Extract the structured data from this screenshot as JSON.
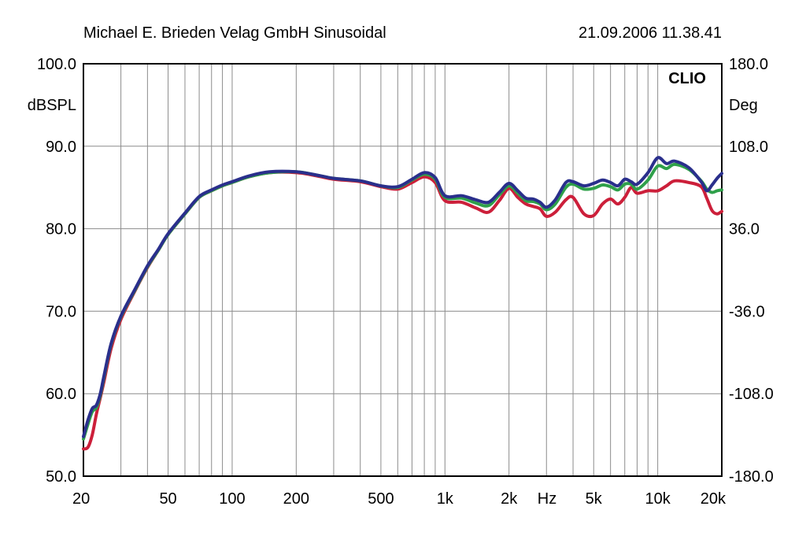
{
  "header": {
    "title": "Michael E. Brieden Velag GmbH Sinusoidal",
    "timestamp": "21.09.2006 11.38.41"
  },
  "brand": "CLIO",
  "chart_data": {
    "type": "line",
    "x_scale": "log",
    "xlim": [
      20,
      20000
    ],
    "ylim": [
      50,
      100
    ],
    "y2lim": [
      -180,
      180
    ],
    "grid": true,
    "ylabel": "dBSPL",
    "y2label": "Deg",
    "x_unit_label": "Hz",
    "x_ticks": [
      {
        "value": 20,
        "label": "20"
      },
      {
        "value": 50,
        "label": "50"
      },
      {
        "value": 100,
        "label": "100"
      },
      {
        "value": 200,
        "label": "200"
      },
      {
        "value": 500,
        "label": "500"
      },
      {
        "value": 1000,
        "label": "1k"
      },
      {
        "value": 2000,
        "label": "2k"
      },
      {
        "value": 5000,
        "label": "5k"
      },
      {
        "value": 10000,
        "label": "10k"
      },
      {
        "value": 20000,
        "label": "20k"
      }
    ],
    "y_ticks": [
      {
        "value": 100,
        "label": "100.0"
      },
      {
        "value": 90,
        "label": "90.0"
      },
      {
        "value": 80,
        "label": "80.0"
      },
      {
        "value": 70,
        "label": "70.0"
      },
      {
        "value": 60,
        "label": "60.0"
      },
      {
        "value": 50,
        "label": "50.0"
      }
    ],
    "y2_ticks": [
      {
        "value": 180,
        "label": "180.0"
      },
      {
        "value": 108,
        "label": "108.0"
      },
      {
        "value": 36,
        "label": "36.0"
      },
      {
        "value": -36,
        "label": "-36.0"
      },
      {
        "value": -108,
        "label": "-108.0"
      },
      {
        "value": -180,
        "label": "-180.0"
      }
    ],
    "series": [
      {
        "color": "#cc1f3a",
        "points": [
          [
            20,
            53.3
          ],
          [
            21,
            53.5
          ],
          [
            22,
            55
          ],
          [
            23,
            57.5
          ],
          [
            24,
            59.5
          ],
          [
            25,
            61.5
          ],
          [
            27,
            65.5
          ],
          [
            30,
            69
          ],
          [
            35,
            72.5
          ],
          [
            40,
            75.3
          ],
          [
            45,
            77.4
          ],
          [
            50,
            79.3
          ],
          [
            60,
            81.8
          ],
          [
            70,
            83.8
          ],
          [
            80,
            84.6
          ],
          [
            90,
            85.2
          ],
          [
            100,
            85.6
          ],
          [
            120,
            86.3
          ],
          [
            150,
            86.8
          ],
          [
            200,
            86.8
          ],
          [
            250,
            86.4
          ],
          [
            300,
            86
          ],
          [
            400,
            85.7
          ],
          [
            500,
            85.1
          ],
          [
            600,
            84.8
          ],
          [
            700,
            85.6
          ],
          [
            800,
            86.3
          ],
          [
            900,
            85.6
          ],
          [
            1000,
            83.4
          ],
          [
            1200,
            83.2
          ],
          [
            1400,
            82.5
          ],
          [
            1600,
            82
          ],
          [
            1800,
            83.4
          ],
          [
            2000,
            84.9
          ],
          [
            2200,
            83.8
          ],
          [
            2400,
            83
          ],
          [
            2600,
            82.7
          ],
          [
            2800,
            82.4
          ],
          [
            3000,
            81.5
          ],
          [
            3300,
            82
          ],
          [
            3700,
            83.5
          ],
          [
            4000,
            83.8
          ],
          [
            4500,
            81.8
          ],
          [
            5000,
            81.6
          ],
          [
            5500,
            83
          ],
          [
            6000,
            83.6
          ],
          [
            6500,
            83
          ],
          [
            7000,
            83.8
          ],
          [
            7500,
            85
          ],
          [
            8000,
            84.3
          ],
          [
            9000,
            84.6
          ],
          [
            10000,
            84.6
          ],
          [
            11000,
            85.2
          ],
          [
            12000,
            85.8
          ],
          [
            14000,
            85.6
          ],
          [
            16000,
            85.1
          ],
          [
            17000,
            83.7
          ],
          [
            18000,
            82.2
          ],
          [
            19000,
            81.8
          ],
          [
            20000,
            82.1
          ]
        ]
      },
      {
        "color": "#2fa04a",
        "points": [
          [
            20,
            54.5
          ],
          [
            21,
            56.3
          ],
          [
            22,
            57.8
          ],
          [
            23,
            58.3
          ],
          [
            24,
            59.8
          ],
          [
            25,
            62
          ],
          [
            27,
            66
          ],
          [
            30,
            69.3
          ],
          [
            35,
            72.6
          ],
          [
            40,
            75.4
          ],
          [
            45,
            77.4
          ],
          [
            50,
            79.3
          ],
          [
            60,
            81.8
          ],
          [
            70,
            83.8
          ],
          [
            80,
            84.6
          ],
          [
            90,
            85.2
          ],
          [
            100,
            85.6
          ],
          [
            120,
            86.3
          ],
          [
            150,
            86.8
          ],
          [
            200,
            86.9
          ],
          [
            250,
            86.5
          ],
          [
            300,
            86.1
          ],
          [
            400,
            85.8
          ],
          [
            500,
            85.2
          ],
          [
            600,
            85
          ],
          [
            700,
            85.9
          ],
          [
            800,
            86.6
          ],
          [
            900,
            86
          ],
          [
            1000,
            83.8
          ],
          [
            1200,
            83.7
          ],
          [
            1400,
            83.1
          ],
          [
            1600,
            82.8
          ],
          [
            1800,
            84.1
          ],
          [
            2000,
            85.2
          ],
          [
            2200,
            84.3
          ],
          [
            2400,
            83.4
          ],
          [
            2600,
            83.3
          ],
          [
            2800,
            83
          ],
          [
            3000,
            82.3
          ],
          [
            3300,
            83
          ],
          [
            3700,
            85
          ],
          [
            4000,
            85.4
          ],
          [
            4500,
            84.8
          ],
          [
            5000,
            84.9
          ],
          [
            5500,
            85.3
          ],
          [
            6000,
            85.1
          ],
          [
            6500,
            84.7
          ],
          [
            7000,
            85.4
          ],
          [
            7500,
            85.4
          ],
          [
            8000,
            84.8
          ],
          [
            9000,
            85.9
          ],
          [
            10000,
            87.6
          ],
          [
            11000,
            87.3
          ],
          [
            12000,
            87.8
          ],
          [
            14000,
            87.2
          ],
          [
            16000,
            85.8
          ],
          [
            17000,
            84.8
          ],
          [
            18000,
            84.4
          ],
          [
            19000,
            84.6
          ],
          [
            20000,
            84.7
          ]
        ]
      },
      {
        "color": "#2a2f8c",
        "points": [
          [
            20,
            54.8
          ],
          [
            21,
            56.8
          ],
          [
            22,
            58.2
          ],
          [
            23,
            58.6
          ],
          [
            24,
            60
          ],
          [
            25,
            62.2
          ],
          [
            27,
            66.1
          ],
          [
            30,
            69.4
          ],
          [
            35,
            72.7
          ],
          [
            40,
            75.5
          ],
          [
            45,
            77.5
          ],
          [
            50,
            79.4
          ],
          [
            60,
            81.9
          ],
          [
            70,
            83.9
          ],
          [
            80,
            84.7
          ],
          [
            90,
            85.3
          ],
          [
            100,
            85.7
          ],
          [
            120,
            86.4
          ],
          [
            150,
            86.9
          ],
          [
            200,
            86.9
          ],
          [
            250,
            86.5
          ],
          [
            300,
            86.1
          ],
          [
            400,
            85.8
          ],
          [
            500,
            85.2
          ],
          [
            600,
            85.1
          ],
          [
            700,
            86
          ],
          [
            800,
            86.8
          ],
          [
            900,
            86.2
          ],
          [
            1000,
            84
          ],
          [
            1200,
            84
          ],
          [
            1400,
            83.5
          ],
          [
            1600,
            83.2
          ],
          [
            1800,
            84.4
          ],
          [
            2000,
            85.5
          ],
          [
            2200,
            84.6
          ],
          [
            2400,
            83.7
          ],
          [
            2600,
            83.6
          ],
          [
            2800,
            83.2
          ],
          [
            3000,
            82.6
          ],
          [
            3300,
            83.5
          ],
          [
            3700,
            85.6
          ],
          [
            4000,
            85.7
          ],
          [
            4500,
            85.2
          ],
          [
            5000,
            85.5
          ],
          [
            5500,
            85.9
          ],
          [
            6000,
            85.6
          ],
          [
            6500,
            85.2
          ],
          [
            7000,
            86
          ],
          [
            7500,
            85.7
          ],
          [
            8000,
            85.4
          ],
          [
            9000,
            86.8
          ],
          [
            10000,
            88.6
          ],
          [
            11000,
            87.9
          ],
          [
            12000,
            88.2
          ],
          [
            14000,
            87.4
          ],
          [
            16000,
            85.7
          ],
          [
            17000,
            84.6
          ],
          [
            18000,
            85.3
          ],
          [
            19000,
            86.1
          ],
          [
            20000,
            86.7
          ]
        ]
      }
    ]
  }
}
